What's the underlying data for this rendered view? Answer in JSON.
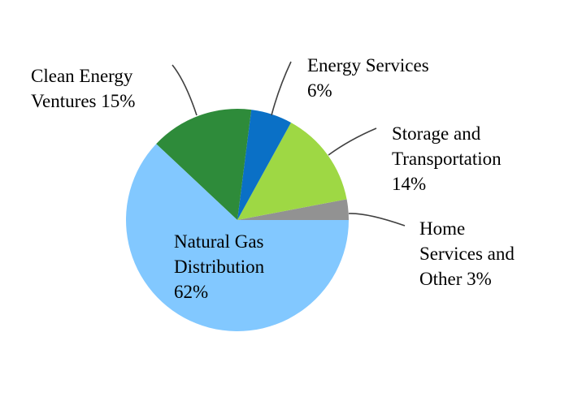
{
  "chart_data": {
    "type": "pie",
    "title": "",
    "start_angle_deg": 0,
    "direction": "counterclockwise",
    "slices": [
      {
        "name": "Home Services and Other",
        "value": 3,
        "label_lines": [
          "Home",
          "Services and",
          "Other 3%"
        ],
        "color": "#929292"
      },
      {
        "name": "Storage and Transportation",
        "value": 14,
        "label_lines": [
          "Storage and",
          "Transportation",
          "14%"
        ],
        "color": "#9ed844"
      },
      {
        "name": "Energy Services",
        "value": 6,
        "label_lines": [
          "Energy Services",
          "6%"
        ],
        "color": "#0a70c6"
      },
      {
        "name": "Clean Energy Ventures",
        "value": 15,
        "label_lines": [
          "Clean Energy",
          "Ventures 15%"
        ],
        "color": "#2e8b3a"
      },
      {
        "name": "Natural Gas Distribution",
        "value": 62,
        "label_lines": [
          "Natural Gas",
          "Distribution",
          "62%"
        ],
        "color": "#82c8ff"
      }
    ]
  }
}
